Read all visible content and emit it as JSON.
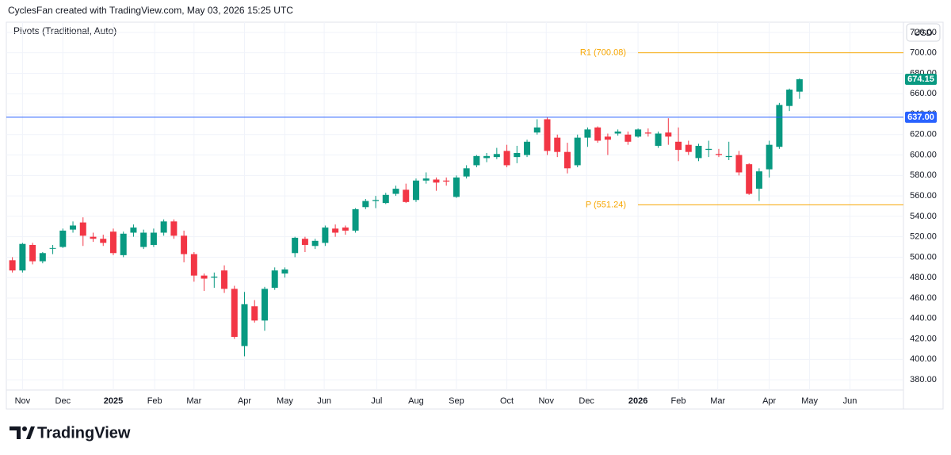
{
  "header": "CyclesFan created with TradingView.com, May 03, 2026 15:25 UTC",
  "brand": "TradingView",
  "chart_data": {
    "type": "candlestick",
    "title": "Pivots (Traditional, Auto)",
    "currency": "USD",
    "up_color": "#089981",
    "down_color": "#f23645",
    "open": [
      497,
      487,
      512,
      496,
      509,
      510,
      527,
      534,
      520,
      518,
      525,
      502,
      524,
      510,
      512,
      524,
      535,
      521,
      503,
      482,
      480,
      487,
      469,
      413,
      452,
      438,
      470,
      484,
      504,
      518,
      511,
      514,
      528,
      529,
      526,
      549,
      555,
      553,
      562,
      566,
      556,
      575,
      576,
      575,
      559,
      579,
      590,
      597,
      598,
      604,
      598,
      600,
      622,
      635,
      617,
      603,
      590,
      617,
      627,
      618,
      621,
      620,
      618,
      622,
      609,
      622,
      613,
      610,
      597,
      605,
      601,
      598,
      600,
      591,
      567,
      586,
      608,
      648,
      662
    ],
    "high": [
      500,
      514,
      514,
      505,
      512,
      528,
      535,
      539,
      524,
      522,
      528,
      525,
      532,
      527,
      528,
      537,
      537,
      526,
      505,
      484,
      485,
      492,
      472,
      466,
      458,
      471,
      490,
      490,
      520,
      520,
      518,
      531,
      532,
      531,
      548,
      557,
      560,
      563,
      570,
      572,
      577,
      583,
      578,
      578,
      580,
      590,
      600,
      602,
      607,
      610,
      609,
      615,
      635,
      637,
      620,
      612,
      620,
      627,
      628,
      621,
      625,
      623,
      626,
      626,
      623,
      636,
      627,
      614,
      611,
      614,
      606,
      613,
      604,
      592,
      587,
      614,
      651,
      665,
      675
    ],
    "low": [
      485,
      485,
      493,
      494,
      503,
      509,
      524,
      511,
      515,
      511,
      502,
      500,
      520,
      508,
      510,
      521,
      518,
      495,
      476,
      467,
      470,
      465,
      420,
      403,
      436,
      428,
      468,
      480,
      500,
      505,
      508,
      511,
      520,
      522,
      524,
      547,
      548,
      552,
      560,
      553,
      554,
      572,
      565,
      570,
      558,
      577,
      588,
      593,
      596,
      588,
      592,
      598,
      620,
      600,
      598,
      582,
      588,
      608,
      612,
      600,
      619,
      610,
      617,
      618,
      607,
      610,
      594,
      600,
      594,
      598,
      598,
      595,
      580,
      561,
      555,
      578,
      606,
      643,
      655
    ],
    "close": [
      487,
      513,
      496,
      504,
      509,
      526,
      531,
      521,
      518,
      514,
      504,
      523,
      529,
      524,
      524,
      535,
      521,
      503,
      482,
      479,
      481,
      469,
      422,
      454,
      438,
      469,
      487,
      488,
      519,
      512,
      516,
      529,
      524,
      526,
      547,
      555,
      556,
      561,
      567,
      554,
      575,
      577,
      573,
      574,
      578,
      587,
      599,
      599,
      601,
      590,
      602,
      613,
      627,
      604,
      603,
      587,
      617,
      625,
      614,
      615,
      623,
      613,
      625,
      621,
      621,
      618,
      605,
      603,
      609,
      606,
      600,
      599,
      583,
      562,
      584,
      610,
      649,
      664,
      674.15
    ],
    "xlim": [
      -0.6,
      88.3
    ],
    "xticks": [
      {
        "value": 1.0,
        "label": "Nov"
      },
      {
        "value": 5.0,
        "label": "Dec"
      },
      {
        "value": 10.0,
        "label": "2025"
      },
      {
        "value": 14.1,
        "label": "Feb"
      },
      {
        "value": 18.0,
        "label": "Mar"
      },
      {
        "value": 23.0,
        "label": "Apr"
      },
      {
        "value": 27.0,
        "label": "May"
      },
      {
        "value": 30.9,
        "label": "Jun"
      },
      {
        "value": 36.1,
        "label": "Jul"
      },
      {
        "value": 40.0,
        "label": "Aug"
      },
      {
        "value": 44.0,
        "label": "Sep"
      },
      {
        "value": 49.0,
        "label": "Oct"
      },
      {
        "value": 52.9,
        "label": "Nov"
      },
      {
        "value": 56.9,
        "label": "Dec"
      },
      {
        "value": 62.0,
        "label": "2026"
      },
      {
        "value": 66.0,
        "label": "Feb"
      },
      {
        "value": 69.9,
        "label": "Mar"
      },
      {
        "value": 75.0,
        "label": "Apr"
      },
      {
        "value": 79.0,
        "label": "May"
      },
      {
        "value": 83.0,
        "label": "Jun"
      }
    ],
    "ylim": [
      370,
      730
    ],
    "yticks": [
      {
        "value": 380,
        "label": "380.00"
      },
      {
        "value": 400,
        "label": "400.00"
      },
      {
        "value": 420,
        "label": "420.00"
      },
      {
        "value": 440,
        "label": "440.00"
      },
      {
        "value": 460,
        "label": "460.00"
      },
      {
        "value": 480,
        "label": "480.00"
      },
      {
        "value": 500,
        "label": "500.00"
      },
      {
        "value": 520,
        "label": "520.00"
      },
      {
        "value": 540,
        "label": "540.00"
      },
      {
        "value": 560,
        "label": "560.00"
      },
      {
        "value": 580,
        "label": "580.00"
      },
      {
        "value": 600,
        "label": "600.00"
      },
      {
        "value": 620,
        "label": "620.00"
      },
      {
        "value": 640,
        "label": "640.00"
      },
      {
        "value": 660,
        "label": "660.00"
      },
      {
        "value": 680,
        "label": "680.00"
      },
      {
        "value": 700,
        "label": "700.00"
      },
      {
        "value": 720,
        "label": "720.00"
      }
    ],
    "grid": true,
    "pivots": [
      {
        "label": "R1 (700.08)",
        "value": 700.08,
        "color": "#f7a600"
      },
      {
        "label": "P (551.24)",
        "value": 551.24,
        "color": "#f7a600"
      }
    ],
    "hline": {
      "value": 637,
      "label": "637.00",
      "color": "#2962ff"
    },
    "last_price": {
      "value": 674.15,
      "label": "674.15"
    }
  }
}
